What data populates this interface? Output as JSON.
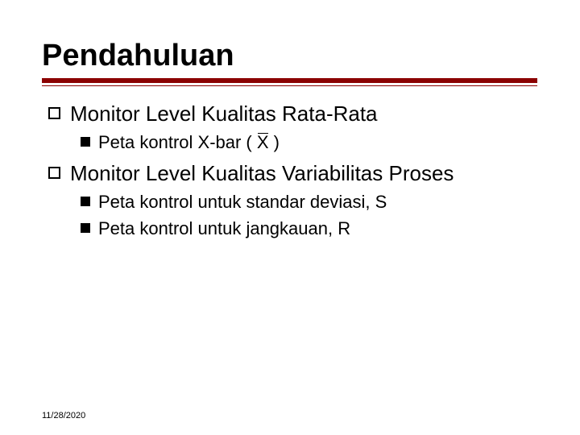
{
  "title": "Pendahuluan",
  "underline_color": "#8b0000",
  "bullets": {
    "item1": {
      "text": "Monitor Level Kualitas Rata-Rata",
      "sub1_prefix": "Peta kontrol X-bar ( ",
      "sub1_symbol": "X",
      "sub1_suffix": " )"
    },
    "item2": {
      "text": "Monitor Level Kualitas Variabilitas Proses",
      "sub1": "Peta kontrol untuk standar deviasi, S",
      "sub2": "Peta kontrol untuk jangkauan, R"
    }
  },
  "date": "11/28/2020",
  "text_color": "#000000",
  "background_color": "#ffffff",
  "fontsize_title": 38,
  "fontsize_level1": 26,
  "fontsize_level2": 22,
  "fontsize_date": 11
}
